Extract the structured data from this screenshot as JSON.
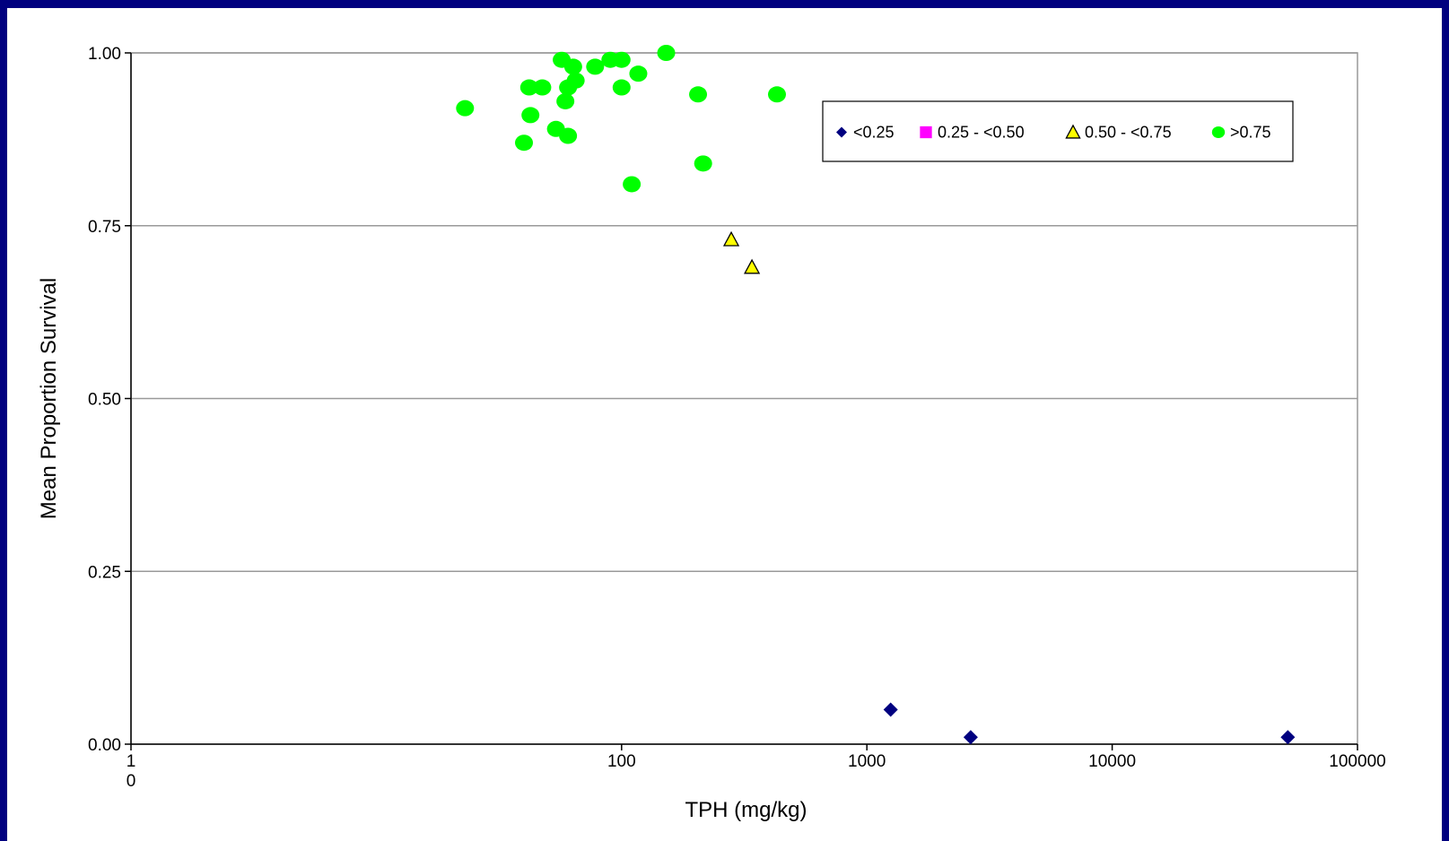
{
  "colors": {
    "frame": "#00007f",
    "background": "#ffffff",
    "gridline": "#999999",
    "lt_025": "#000080",
    "r025_050": "#ff00ff",
    "r050_075": "#ffff00",
    "gt_075": "#00ff00"
  },
  "chart_data": {
    "type": "scatter",
    "title": "",
    "xlabel": "TPH (mg/kg)",
    "ylabel": "Mean Proportion Survival",
    "x_scale": "log",
    "xlim": [
      1,
      100000
    ],
    "ylim": [
      0,
      1
    ],
    "x_ticks": [
      {
        "value": 1,
        "label": "1"
      },
      {
        "value": 100,
        "label": "100"
      },
      {
        "value": 1000,
        "label": "1000"
      },
      {
        "value": 10000,
        "label": "10000"
      },
      {
        "value": 100000,
        "label": "100000"
      }
    ],
    "x_origin_label": "0",
    "y_ticks": [
      {
        "value": 0,
        "label": "0.00"
      },
      {
        "value": 0.25,
        "label": "0.25"
      },
      {
        "value": 0.5,
        "label": "0.50"
      },
      {
        "value": 0.75,
        "label": "0.75"
      },
      {
        "value": 1,
        "label": "1.00"
      }
    ],
    "grid": "horizontal",
    "legend_position": "top-right",
    "series": [
      {
        "name": "<0.25",
        "marker": "diamond",
        "color": "#000080",
        "points": [
          {
            "x": 1250,
            "y": 0.05
          },
          {
            "x": 2650,
            "y": 0.01
          },
          {
            "x": 52000,
            "y": 0.01
          }
        ]
      },
      {
        "name": "0.25 - <0.50",
        "marker": "square",
        "color": "#ff00ff",
        "points": []
      },
      {
        "name": "0.50 - <0.75",
        "marker": "triangle",
        "color": "#ffff00",
        "points": [
          {
            "x": 280,
            "y": 0.73
          },
          {
            "x": 340,
            "y": 0.69
          }
        ]
      },
      {
        "name": ">0.75",
        "marker": "circle",
        "color": "#00ff00",
        "points": [
          {
            "x": 23,
            "y": 0.92
          },
          {
            "x": 40,
            "y": 0.87
          },
          {
            "x": 42,
            "y": 0.95
          },
          {
            "x": 42.5,
            "y": 0.91
          },
          {
            "x": 47.5,
            "y": 0.95
          },
          {
            "x": 54,
            "y": 0.89
          },
          {
            "x": 57,
            "y": 0.99
          },
          {
            "x": 59,
            "y": 0.93
          },
          {
            "x": 60.5,
            "y": 0.95
          },
          {
            "x": 60.5,
            "y": 0.88
          },
          {
            "x": 63.5,
            "y": 0.98
          },
          {
            "x": 65,
            "y": 0.96
          },
          {
            "x": 78,
            "y": 0.98
          },
          {
            "x": 90,
            "y": 0.99
          },
          {
            "x": 100,
            "y": 0.99
          },
          {
            "x": 100,
            "y": 0.95
          },
          {
            "x": 110,
            "y": 0.81
          },
          {
            "x": 117,
            "y": 0.97
          },
          {
            "x": 152,
            "y": 1.0
          },
          {
            "x": 205,
            "y": 0.94
          },
          {
            "x": 215,
            "y": 0.84
          },
          {
            "x": 430,
            "y": 0.94
          }
        ]
      }
    ]
  }
}
